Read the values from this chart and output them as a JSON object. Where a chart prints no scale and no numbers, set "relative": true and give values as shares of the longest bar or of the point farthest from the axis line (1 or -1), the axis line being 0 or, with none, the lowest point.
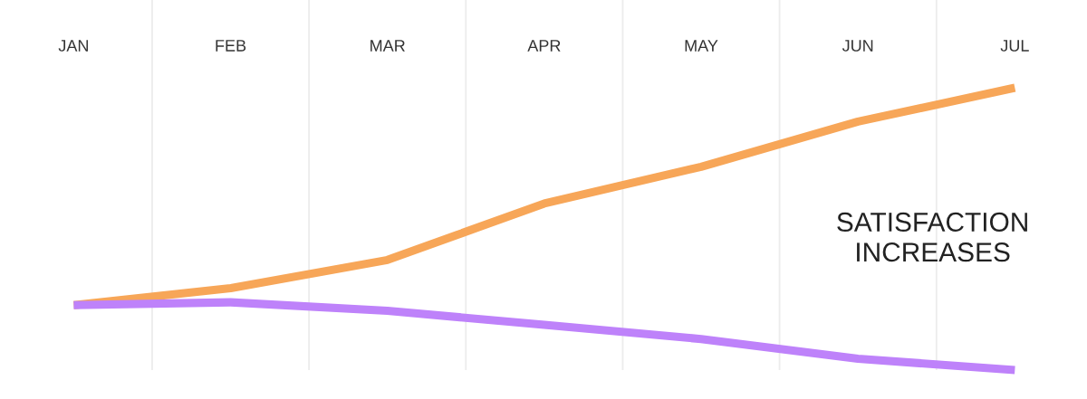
{
  "chart_data": {
    "type": "line",
    "relative": true,
    "categories": [
      "JAN",
      "FEB",
      "MAR",
      "APR",
      "MAY",
      "JUN",
      "JUL"
    ],
    "series": [
      {
        "color": "#f7a658",
        "values": [
          0.23,
          0.29,
          0.39,
          0.59,
          0.72,
          0.88,
          1.0
        ]
      },
      {
        "color": "#be82fa",
        "values": [
          0.23,
          0.24,
          0.21,
          0.16,
          0.11,
          0.04,
          0.0
        ]
      }
    ],
    "annotations": [
      "SATISFACTION\nINCREASES"
    ],
    "grid": "x",
    "line_style": "solid",
    "marker": "none"
  }
}
